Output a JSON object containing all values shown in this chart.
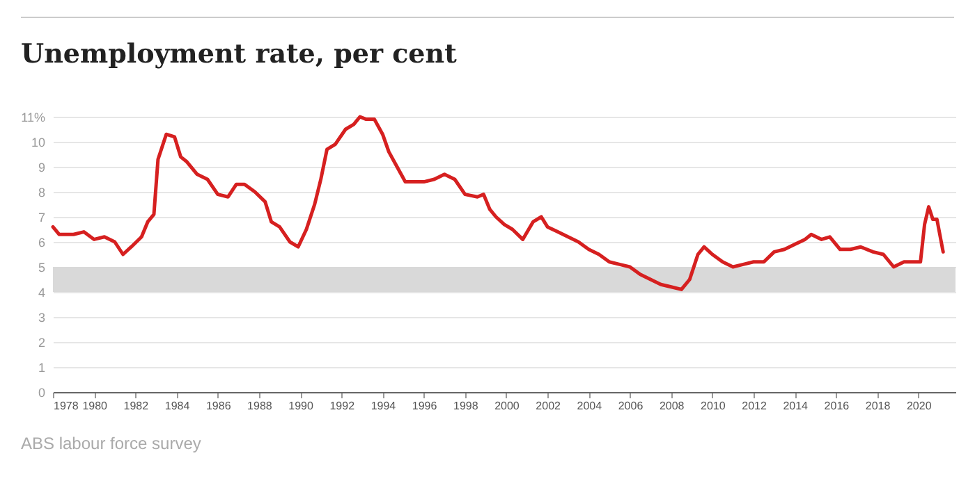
{
  "chart_data": {
    "type": "line",
    "title": "Unemployment rate, per cent",
    "annotations": [
      "ABS labour force survey"
    ],
    "x": [
      1978.0,
      1978.3,
      1979,
      1979.5,
      1980,
      1980.5,
      1981,
      1981.4,
      1981.8,
      1982.3,
      1982.6,
      1982.9,
      1983.1,
      1983.5,
      1983.9,
      1984.2,
      1984.5,
      1985,
      1985.5,
      1986,
      1986.5,
      1986.9,
      1987.3,
      1987.8,
      1988.3,
      1988.6,
      1989,
      1989.5,
      1989.9,
      1990.3,
      1990.7,
      1991.0,
      1991.3,
      1991.7,
      1992.2,
      1992.6,
      1992.9,
      1993.2,
      1993.6,
      1994.0,
      1994.3,
      1994.7,
      1995.1,
      1995.5,
      1996,
      1996.5,
      1997,
      1997.5,
      1998,
      1998.6,
      1998.9,
      1999.2,
      1999.5,
      1999.9,
      2000.3,
      2000.8,
      2001.3,
      2001.7,
      2002.0,
      2002.5,
      2003,
      2003.5,
      2004,
      2004.5,
      2005,
      2005.5,
      2006,
      2006.5,
      2007,
      2007.5,
      2008,
      2008.5,
      2008.9,
      2009.3,
      2009.6,
      2010,
      2010.5,
      2011,
      2011.5,
      2012,
      2012.5,
      2013,
      2013.5,
      2014,
      2014.5,
      2014.8,
      2015.3,
      2015.7,
      2016.2,
      2016.7,
      2017.2,
      2017.8,
      2018.3,
      2018.8,
      2019.3,
      2019.9,
      2020.1,
      2020.3,
      2020.5,
      2020.7,
      2020.9,
      2021.2
    ],
    "series": [
      {
        "color": "#d62020",
        "values": [
          6.6,
          6.3,
          6.3,
          6.4,
          6.1,
          6.2,
          6.0,
          5.5,
          5.8,
          6.2,
          6.8,
          7.1,
          9.3,
          10.3,
          10.2,
          9.4,
          9.2,
          8.7,
          8.5,
          7.9,
          7.8,
          8.3,
          8.3,
          8.0,
          7.6,
          6.8,
          6.6,
          6.0,
          5.8,
          6.5,
          7.5,
          8.5,
          9.7,
          9.9,
          10.5,
          10.7,
          11.0,
          10.9,
          10.9,
          10.3,
          9.6,
          9.0,
          8.4,
          8.4,
          8.4,
          8.5,
          8.7,
          8.5,
          7.9,
          7.8,
          7.9,
          7.3,
          7.0,
          6.7,
          6.5,
          6.1,
          6.8,
          7.0,
          6.6,
          6.4,
          6.2,
          6.0,
          5.7,
          5.5,
          5.2,
          5.1,
          5.0,
          4.7,
          4.5,
          4.3,
          4.2,
          4.1,
          4.5,
          5.5,
          5.8,
          5.5,
          5.2,
          5.0,
          5.1,
          5.2,
          5.2,
          5.6,
          5.7,
          5.9,
          6.1,
          6.3,
          6.1,
          6.2,
          5.7,
          5.7,
          5.8,
          5.6,
          5.5,
          5.0,
          5.2,
          5.2,
          5.2,
          6.7,
          7.4,
          6.9,
          6.9,
          5.6
        ]
      }
    ],
    "xlim": [
      1978,
      2021.8
    ],
    "xticks": [
      1978,
      1980,
      1982,
      1984,
      1986,
      1988,
      1990,
      1992,
      1994,
      1996,
      1998,
      2000,
      2002,
      2004,
      2006,
      2008,
      2010,
      2012,
      2014,
      2016,
      2018,
      2020
    ],
    "ylim": [
      0,
      11
    ],
    "yticks": [
      0,
      1,
      2,
      3,
      4,
      5,
      6,
      7,
      8,
      9,
      10,
      {
        "value": 11,
        "label": "11%"
      }
    ],
    "bands": [
      {
        "axis": "y",
        "from": 4,
        "to": 5,
        "color": "#d9d9d9"
      }
    ],
    "grid": "y",
    "line_style": "solid",
    "marker": "none"
  }
}
